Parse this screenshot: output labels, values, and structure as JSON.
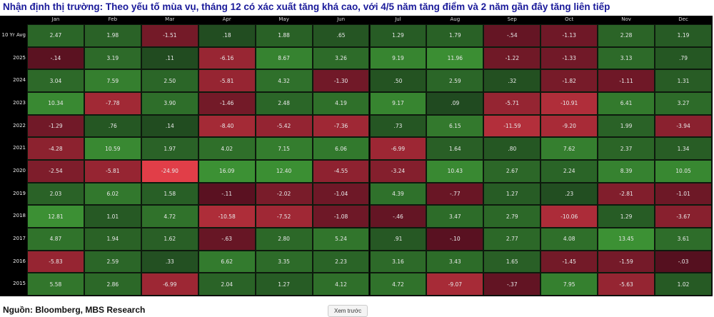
{
  "title": "Nhận định thị trường: Theo yếu tố mùa vụ, tháng 12  có xác xuất tăng khá cao, với 4/5 năm tăng điểm và 2 năm gần đây tăng liên tiếp",
  "source": "Nguồn: Bloomberg, MBS Research",
  "preview_button": "Xem trước",
  "colors": {
    "positive": "#3a8f32",
    "negative": "#e0404c",
    "background": "#000000"
  },
  "chart_data": {
    "type": "heatmap",
    "columns": [
      "Jan",
      "Feb",
      "Mar",
      "Apr",
      "May",
      "Jun",
      "Jul",
      "Aug",
      "Sep",
      "Oct",
      "Nov",
      "Dec"
    ],
    "rows": [
      {
        "label": "10 Yr Avg",
        "values": [
          "2.47",
          "1.98",
          "-1.51",
          ".18",
          "1.88",
          ".65",
          "1.29",
          "1.79",
          "-.54",
          "-1.13",
          "2.28",
          "1.19"
        ]
      },
      {
        "label": "2025",
        "values": [
          "-.14",
          "3.19",
          ".11",
          "-6.16",
          "8.67",
          "3.26",
          "9.19",
          "11.96",
          "-1.22",
          "-1.33",
          "3.13",
          ".79"
        ]
      },
      {
        "label": "2024",
        "values": [
          "3.04",
          "7.59",
          "2.50",
          "-5.81",
          "4.32",
          "-1.30",
          ".50",
          "2.59",
          ".32",
          "-1.82",
          "-1.11",
          "1.31"
        ]
      },
      {
        "label": "2023",
        "values": [
          "10.34",
          "-7.78",
          "3.90",
          "-1.46",
          "2.48",
          "4.19",
          "9.17",
          ".09",
          "-5.71",
          "-10.91",
          "6.41",
          "3.27"
        ]
      },
      {
        "label": "2022",
        "values": [
          "-1.29",
          ".76",
          ".14",
          "-8.40",
          "-5.42",
          "-7.36",
          ".73",
          "6.15",
          "-11.59",
          "-9.20",
          "1.99",
          "-3.94"
        ]
      },
      {
        "label": "2021",
        "values": [
          "-4.28",
          "10.59",
          "1.97",
          "4.02",
          "7.15",
          "6.06",
          "-6.99",
          "1.64",
          ".80",
          "7.62",
          "2.37",
          "1.34"
        ]
      },
      {
        "label": "2020",
        "values": [
          "-2.54",
          "-5.81",
          "-24.90",
          "16.09",
          "12.40",
          "-4.55",
          "-3.24",
          "10.43",
          "2.67",
          "2.24",
          "8.39",
          "10.05"
        ]
      },
      {
        "label": "2019",
        "values": [
          "2.03",
          "6.02",
          "1.58",
          "-.11",
          "-2.02",
          "-1.04",
          "4.39",
          "-.77",
          "1.27",
          ".23",
          "-2.81",
          "-1.01"
        ]
      },
      {
        "label": "2018",
        "values": [
          "12.81",
          "1.01",
          "4.72",
          "-10.58",
          "-7.52",
          "-1.08",
          "-.46",
          "3.47",
          "2.79",
          "-10.06",
          "1.29",
          "-3.67"
        ]
      },
      {
        "label": "2017",
        "values": [
          "4.87",
          "1.94",
          "1.62",
          "-.63",
          "2.80",
          "5.24",
          ".91",
          "-.10",
          "2.77",
          "4.08",
          "13.45",
          "3.61"
        ]
      },
      {
        "label": "2016",
        "values": [
          "-5.83",
          "2.59",
          ".33",
          "6.62",
          "3.35",
          "2.23",
          "3.16",
          "3.43",
          "1.65",
          "-1.45",
          "-1.59",
          "-.03"
        ]
      },
      {
        "label": "2015",
        "values": [
          "5.58",
          "2.86",
          "-6.99",
          "2.04",
          "1.27",
          "4.12",
          "4.72",
          "-9.07",
          "-.37",
          "7.95",
          "-5.63",
          "1.02"
        ]
      }
    ]
  }
}
